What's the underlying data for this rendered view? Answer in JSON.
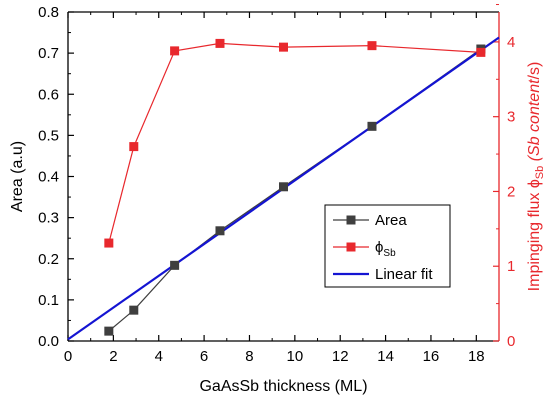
{
  "chart_data": {
    "type": "line",
    "xlabel": "GaAsSb thickness (ML)",
    "ylabel_left": "Area (a.u)",
    "ylabel_right": {
      "prefix": "Impinging flux ϕ",
      "sub": "Sb",
      "italic": " (Sb content",
      "suffix": "/s)"
    },
    "xlim": [
      0,
      19
    ],
    "ylim_left": [
      0,
      0.8
    ],
    "ylim_right": [
      0,
      4.4
    ],
    "x_ticks": [
      "0",
      "2",
      "4",
      "6",
      "8",
      "10",
      "12",
      "14",
      "16",
      "18"
    ],
    "y_left_ticks": [
      "0.0",
      "0.1",
      "0.2",
      "0.3",
      "0.4",
      "0.5",
      "0.6",
      "0.7",
      "0.8"
    ],
    "y_right_ticks": [
      "0",
      "1",
      "2",
      "3",
      "4"
    ],
    "grid": false,
    "legend_position": "center-right",
    "colors": {
      "area": "#3f3f3f",
      "phi": "#e8282d",
      "fit": "#1414d2",
      "right_axis": "#e8282d"
    },
    "series": [
      {
        "name": "Area",
        "axis": "left",
        "marker": "square",
        "x": [
          1.8,
          2.9,
          4.7,
          6.7,
          9.5,
          13.4,
          18.2
        ],
        "y": [
          0.024,
          0.075,
          0.184,
          0.268,
          0.375,
          0.522,
          0.71
        ]
      },
      {
        "name": "ϕ",
        "sub": "Sb",
        "axis": "right",
        "marker": "square",
        "x": [
          1.8,
          2.9,
          4.7,
          6.7,
          9.5,
          13.4,
          18.2
        ],
        "y": [
          1.31,
          2.6,
          3.88,
          3.98,
          3.93,
          3.95,
          3.86
        ]
      },
      {
        "name": "Linear fit",
        "axis": "left",
        "marker": "none",
        "x": [
          0,
          19
        ],
        "y": [
          0.004,
          0.738
        ]
      }
    ]
  }
}
